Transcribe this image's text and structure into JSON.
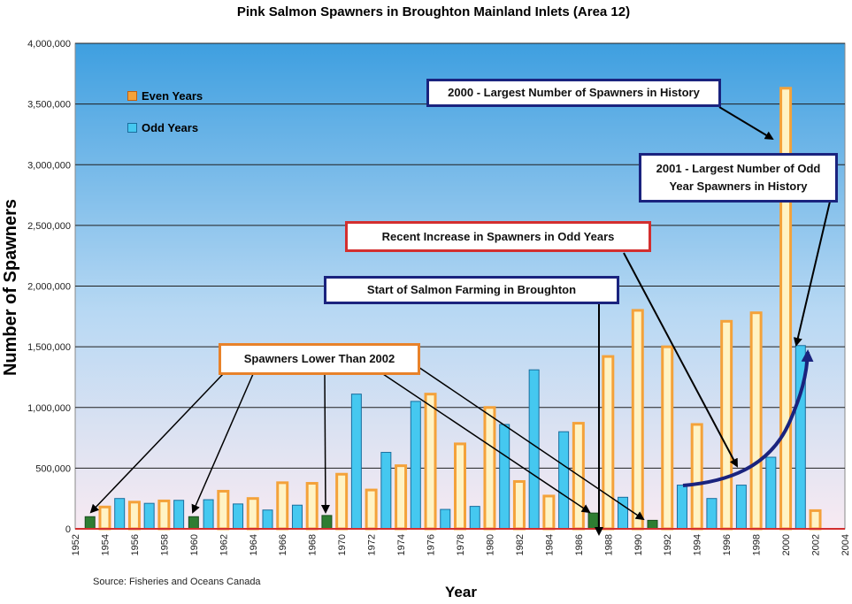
{
  "chart_data": {
    "type": "bar",
    "title": "Pink Salmon Spawners in Broughton Mainland Inlets (Area 12)",
    "xlabel": "Year",
    "ylabel": "Number of Spawners",
    "ylim": [
      0,
      4000000
    ],
    "y_ticks": [
      "0",
      "500,000",
      "1,000,000",
      "1,500,000",
      "2,000,000",
      "2,500,000",
      "3,000,000",
      "3,500,000",
      "4,000,000"
    ],
    "x_ticks": [
      "1952",
      "1954",
      "1956",
      "1958",
      "1960",
      "1962",
      "1964",
      "1966",
      "1968",
      "1970",
      "1972",
      "1974",
      "1976",
      "1978",
      "1980",
      "1982",
      "1984",
      "1986",
      "1988",
      "1990",
      "1992",
      "1994",
      "1996",
      "1998",
      "2000",
      "2002",
      "2004"
    ],
    "xlim": [
      1952,
      2004
    ],
    "grid": true,
    "legend_position": "top-left",
    "series": [
      {
        "name": "Even Years",
        "color": "#F4A23A",
        "points": [
          [
            1954,
            180000
          ],
          [
            1956,
            220000
          ],
          [
            1958,
            230000
          ],
          [
            1960,
            100000
          ],
          [
            1962,
            310000
          ],
          [
            1964,
            250000
          ],
          [
            1966,
            380000
          ],
          [
            1968,
            375000
          ],
          [
            1970,
            450000
          ],
          [
            1972,
            320000
          ],
          [
            1974,
            520000
          ],
          [
            1976,
            1110000
          ],
          [
            1978,
            700000
          ],
          [
            1980,
            1000000
          ],
          [
            1982,
            390000
          ],
          [
            1984,
            270000
          ],
          [
            1986,
            870000
          ],
          [
            1988,
            1420000
          ],
          [
            1990,
            1800000
          ],
          [
            1992,
            1500000
          ],
          [
            1994,
            860000
          ],
          [
            1996,
            1710000
          ],
          [
            1998,
            1780000
          ],
          [
            2000,
            3630000
          ],
          [
            2002,
            150000
          ]
        ]
      },
      {
        "name": "Odd Years",
        "color": "#45C8F0",
        "points": [
          [
            1953,
            100000
          ],
          [
            1955,
            250000
          ],
          [
            1957,
            210000
          ],
          [
            1959,
            235000
          ],
          [
            1961,
            240000
          ],
          [
            1963,
            205000
          ],
          [
            1965,
            155000
          ],
          [
            1967,
            195000
          ],
          [
            1969,
            110000
          ],
          [
            1971,
            1110000
          ],
          [
            1973,
            630000
          ],
          [
            1975,
            1050000
          ],
          [
            1977,
            160000
          ],
          [
            1979,
            185000
          ],
          [
            1981,
            860000
          ],
          [
            1983,
            1310000
          ],
          [
            1985,
            800000
          ],
          [
            1987,
            130000
          ],
          [
            1989,
            260000
          ],
          [
            1991,
            70000
          ],
          [
            1993,
            360000
          ],
          [
            1995,
            250000
          ],
          [
            1997,
            360000
          ],
          [
            1999,
            590000
          ],
          [
            2001,
            1510000
          ]
        ]
      }
    ],
    "highlighted_years": [
      1953,
      1960,
      1969,
      1987,
      1991
    ],
    "highlight_color": "#2E7D32",
    "annotations": [
      "2000 - Largest Number of Spawners in History",
      "2001 - Largest Number of Odd Year Spawners in History",
      "Recent Increase in Spawners in Odd Years",
      "Start of Salmon Farming  in  Broughton",
      "Spawners Lower Than 2002"
    ],
    "source": "Source: Fisheries and Oceans Canada"
  },
  "legend": {
    "even_label": "Even Years",
    "odd_label": "Odd Years"
  },
  "callouts": {
    "largest_2000": "2000 - Largest Number of Spawners in History",
    "largest_2001_line1": "2001 - Largest Number of Odd",
    "largest_2001_line2": "Year Spawners in History",
    "recent_increase": "Recent Increase in Spawners in Odd Years",
    "salmon_farming": "Start of Salmon Farming  in  Broughton",
    "spawners_lower": "Spawners Lower Than 2002"
  },
  "colors": {
    "even_bar": "#F4A23A",
    "odd_bar": "#45C8F0",
    "highlight_bar": "#2E7D32",
    "plot_top": "#3E9FE0",
    "plot_bottom": "#F8EAF2",
    "red_border": "#D32F2F",
    "blue_border": "#1A237E",
    "orange_border": "#E8822A"
  }
}
